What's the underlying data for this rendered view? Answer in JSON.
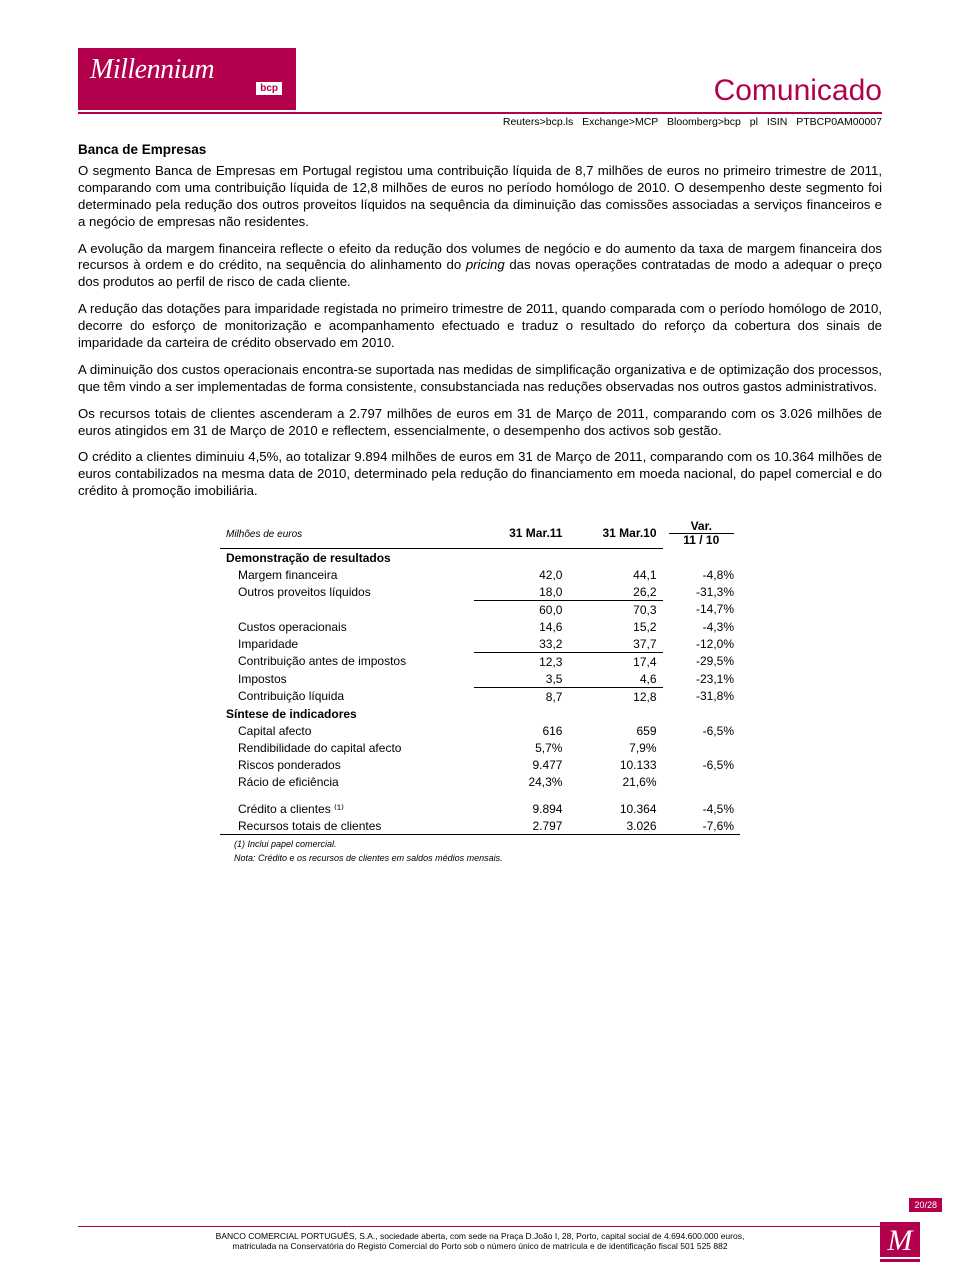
{
  "header": {
    "logo_main": "Millennium",
    "logo_sub": "bcp",
    "title": "Comunicado",
    "tickers": "Reuters>bcp.ls   Exchange>MCP   Bloomberg>bcp pl   ISIN   PTBCP0AM00007"
  },
  "section_title": "Banca de Empresas",
  "paragraphs": {
    "p1": "O segmento Banca de Empresas em Portugal registou uma contribuição líquida de 8,7 milhões de euros no primeiro trimestre de 2011, comparando com uma contribuição líquida de 12,8 milhões de euros no período homólogo de 2010. O desempenho deste segmento foi determinado pela redução dos outros proveitos líquidos na sequência da diminuição das comissões associadas a serviços financeiros e a negócio de empresas não residentes.",
    "p2a": "A evolução da margem financeira reflecte o efeito da redução dos volumes de negócio e do aumento da taxa de margem financeira dos recursos à ordem e do crédito, na sequência do alinhamento do ",
    "p2b": "pricing",
    "p2c": " das novas operações contratadas de modo a adequar o preço dos produtos ao perfil de risco de cada cliente.",
    "p3": "A redução das dotações para imparidade registada no primeiro trimestre de 2011, quando comparada com o período homólogo de 2010, decorre do esforço de monitorização e acompanhamento efectuado e traduz o resultado do reforço da cobertura dos sinais de imparidade da carteira de crédito observado em 2010.",
    "p4": "A diminuição dos custos operacionais encontra-se suportada nas medidas de simplificação organizativa e de optimização dos processos, que têm vindo a ser implementadas de forma consistente, consubstanciada nas reduções observadas nos outros gastos administrativos.",
    "p5": "Os recursos totais de clientes ascenderam a 2.797 milhões de euros em 31 de Março de 2011, comparando com os 3.026 milhões de euros atingidos em 31 de Março de 2010 e reflectem, essencialmente, o desempenho dos activos sob gestão.",
    "p6": "O crédito a clientes diminuiu 4,5%, ao totalizar 9.894 milhões de euros em 31 de Março de 2011, comparando com os 10.364 milhões de euros contabilizados na mesma data de 2010, determinado pela redução do financiamento em moeda nacional, do papel comercial e do crédito à promoção imobiliária."
  },
  "table": {
    "unit_label": "Milhões de euros",
    "col1": "31 Mar.11",
    "col2": "31 Mar.10",
    "var_top": "Var.",
    "var_bot": "11 / 10",
    "section1": "Demonstração de resultados",
    "rows1": [
      {
        "label": "Margem financeira",
        "v1": "42,0",
        "v2": "44,1",
        "var": "-4,8%",
        "ul": false
      },
      {
        "label": "Outros proveitos líquidos",
        "v1": "18,0",
        "v2": "26,2",
        "var": "-31,3%",
        "ul": true
      },
      {
        "label": "",
        "v1": "60,0",
        "v2": "70,3",
        "var": "-14,7%",
        "ul": false
      },
      {
        "label": "Custos operacionais",
        "v1": "14,6",
        "v2": "15,2",
        "var": "-4,3%",
        "ul": false
      },
      {
        "label": "Imparidade",
        "v1": "33,2",
        "v2": "37,7",
        "var": "-12,0%",
        "ul": true
      },
      {
        "label": "Contribuição antes de impostos",
        "v1": "12,3",
        "v2": "17,4",
        "var": "-29,5%",
        "ul": false
      },
      {
        "label": "Impostos",
        "v1": "3,5",
        "v2": "4,6",
        "var": "-23,1%",
        "ul": true
      },
      {
        "label": "Contribuição líquida",
        "v1": "8,7",
        "v2": "12,8",
        "var": "-31,8%",
        "ul": false
      }
    ],
    "section2": "Síntese de indicadores",
    "rows2": [
      {
        "label": "Capital afecto",
        "v1": "616",
        "v2": "659",
        "var": "-6,5%"
      },
      {
        "label": "Rendibilidade do capital afecto",
        "v1": "5,7%",
        "v2": "7,9%",
        "var": ""
      },
      {
        "label": "Riscos ponderados",
        "v1": "9.477",
        "v2": "10.133",
        "var": "-6,5%"
      },
      {
        "label": "Rácio de eficiência",
        "v1": "24,3%",
        "v2": "21,6%",
        "var": ""
      }
    ],
    "rows3": [
      {
        "label": "Crédito a clientes ⁽¹⁾",
        "v1": "9.894",
        "v2": "10.364",
        "var": "-4,5%"
      },
      {
        "label": "Recursos totais de clientes",
        "v1": "2.797",
        "v2": "3.026",
        "var": "-7,6%"
      }
    ],
    "note1": "(1) Inclui papel comercial.",
    "note2": "Nota: Crédito e os recursos de clientes em saldos médios mensais."
  },
  "footer": {
    "line1": "BANCO COMERCIAL PORTUGUÊS, S.A., sociedade aberta, com sede na Praça D.João I, 28, Porto, capital social de 4.694.600.000 euros,",
    "line2": "matriculada na Conservatória do Registo Comercial do Porto sob o número único de matrícula e de identificação fiscal 501 525 882",
    "page": "20/28",
    "logo": "M"
  },
  "colors": {
    "brand": "#b2004d"
  }
}
